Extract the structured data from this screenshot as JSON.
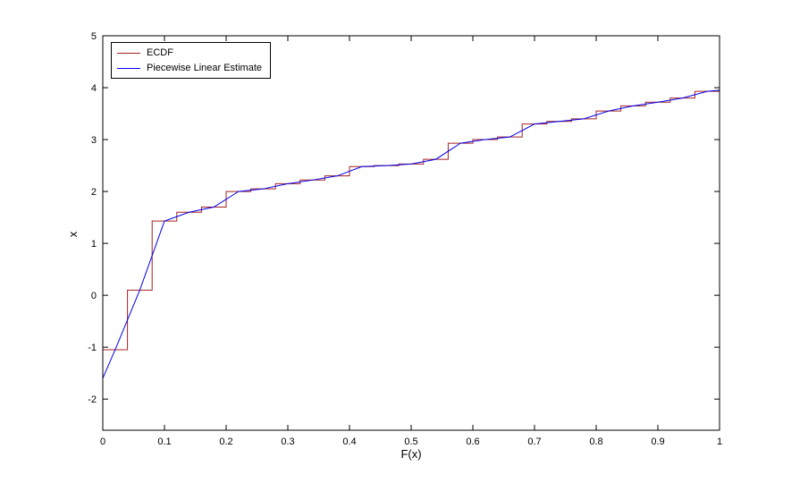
{
  "figure": {
    "background": "#ffffff",
    "axes_border_color": "#000000"
  },
  "chart_data": {
    "type": "line",
    "title": "",
    "xlabel": "F(x)",
    "ylabel": "x",
    "xlim": [
      0,
      1
    ],
    "ylim": [
      -2.6,
      5
    ],
    "xticks": [
      0,
      0.1,
      0.2,
      0.3,
      0.4,
      0.5,
      0.6,
      0.7,
      0.8,
      0.9,
      1
    ],
    "xtick_labels": [
      "0",
      "0.1",
      "0.2",
      "0.3",
      "0.4",
      "0.5",
      "0.6",
      "0.7",
      "0.8",
      "0.9",
      "1"
    ],
    "yticks": [
      -2,
      -1,
      0,
      1,
      2,
      3,
      4,
      5
    ],
    "ytick_labels": [
      "-2",
      "-1",
      "0",
      "1",
      "2",
      "3",
      "4",
      "5"
    ],
    "grid": false,
    "legend": {
      "position": "top-left",
      "border_color": "#000000",
      "background": "#ffffff",
      "entries": [
        "ECDF",
        "Piecewise Linear Estimate"
      ]
    },
    "series": [
      {
        "name": "ECDF",
        "type": "step-ecdf",
        "color": "#a52020",
        "n": 25,
        "sorted_samples": [
          -1.05,
          0.1,
          1.43,
          1.6,
          1.7,
          2.0,
          2.05,
          2.15,
          2.22,
          2.3,
          2.48,
          2.5,
          2.53,
          2.62,
          2.93,
          3.0,
          3.05,
          3.3,
          3.35,
          3.4,
          3.55,
          3.65,
          3.72,
          3.8,
          3.93
        ]
      },
      {
        "name": "Piecewise Linear Estimate",
        "type": "line",
        "color": "#0000ee",
        "x": [
          0,
          0.02,
          0.06,
          0.1,
          0.14,
          0.18,
          0.22,
          0.26,
          0.3,
          0.34,
          0.38,
          0.42,
          0.46,
          0.5,
          0.54,
          0.58,
          0.62,
          0.66,
          0.7,
          0.74,
          0.78,
          0.82,
          0.86,
          0.9,
          0.94,
          0.98,
          1
        ],
        "y": [
          -1.6,
          -1.05,
          0.1,
          1.43,
          1.6,
          1.7,
          2.0,
          2.05,
          2.15,
          2.22,
          2.3,
          2.48,
          2.5,
          2.53,
          2.62,
          2.93,
          3.0,
          3.05,
          3.3,
          3.35,
          3.4,
          3.55,
          3.65,
          3.72,
          3.8,
          3.93,
          3.95
        ]
      }
    ]
  }
}
